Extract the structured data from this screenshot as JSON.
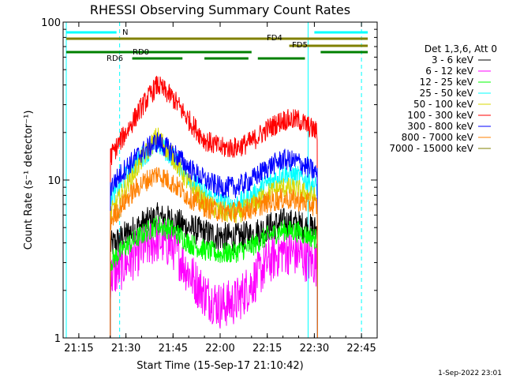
{
  "chart_data": {
    "type": "line",
    "title": "RHESSI Observing Summary Count Rates",
    "xlabel": "Start Time (15-Sep-17 21:10:42)",
    "ylabel": "Count Rate (s⁻¹ detector⁻¹)",
    "yscale": "log",
    "ylim": [
      1,
      100
    ],
    "xlim": [
      "21:10",
      "22:50"
    ],
    "x_ticks": [
      "21:15",
      "21:30",
      "21:45",
      "22:00",
      "22:15",
      "22:30",
      "22:45"
    ],
    "y_ticks": [
      "1",
      "10",
      "100"
    ],
    "grid": false,
    "legend_title": "Det 1,3,6, Att 0",
    "legend_position": "right",
    "data_start": "21:25",
    "data_end": "22:31",
    "series": [
      {
        "name": "3 - 6 keV",
        "color": "#000000",
        "x": [
          "21:25",
          "21:30",
          "21:35",
          "21:40",
          "21:45",
          "21:50",
          "21:55",
          "22:00",
          "22:05",
          "22:10",
          "22:15",
          "22:20",
          "22:25",
          "22:31"
        ],
        "values": [
          3.8,
          4.5,
          5.2,
          5.8,
          5.5,
          5.0,
          4.6,
          4.4,
          4.3,
          4.5,
          5.0,
          5.4,
          5.2,
          4.8
        ]
      },
      {
        "name": "6 - 12 keV",
        "color": "#ff00ff",
        "x": [
          "21:25",
          "21:30",
          "21:35",
          "21:40",
          "21:45",
          "21:50",
          "21:55",
          "22:00",
          "22:05",
          "22:10",
          "22:15",
          "22:20",
          "22:25",
          "22:31"
        ],
        "values": [
          2.4,
          3.0,
          3.6,
          4.2,
          3.8,
          2.6,
          1.9,
          1.6,
          1.7,
          2.2,
          3.0,
          3.6,
          3.4,
          2.9
        ]
      },
      {
        "name": "12 - 25 keV",
        "color": "#00ff00",
        "x": [
          "21:25",
          "21:30",
          "21:35",
          "21:40",
          "21:45",
          "21:50",
          "21:55",
          "22:00",
          "22:05",
          "22:10",
          "22:15",
          "22:20",
          "22:25",
          "22:31"
        ],
        "values": [
          3.0,
          3.8,
          4.5,
          5.2,
          4.8,
          4.0,
          3.6,
          3.4,
          3.5,
          3.8,
          4.4,
          4.8,
          4.7,
          4.2
        ]
      },
      {
        "name": "25 - 50 keV",
        "color": "#00ffff",
        "x": [
          "21:25",
          "21:30",
          "21:35",
          "21:40",
          "21:45",
          "21:50",
          "21:55",
          "22:00",
          "22:05",
          "22:10",
          "22:15",
          "22:20",
          "22:25",
          "22:31"
        ],
        "values": [
          7.5,
          10.5,
          14,
          17,
          14,
          10.5,
          8.2,
          7.2,
          7.0,
          7.8,
          9.5,
          11,
          10.5,
          9.0
        ]
      },
      {
        "name": "50 - 100 keV",
        "color": "#d8d800",
        "x": [
          "21:25",
          "21:30",
          "21:35",
          "21:40",
          "21:45",
          "21:50",
          "21:55",
          "22:00",
          "22:05",
          "22:10",
          "22:15",
          "22:20",
          "22:25",
          "22:31"
        ],
        "values": [
          6.0,
          9.0,
          13.5,
          19,
          14,
          9.5,
          7.2,
          6.3,
          6.1,
          6.8,
          8.2,
          9.0,
          8.6,
          7.6
        ]
      },
      {
        "name": "100 - 300 keV",
        "color": "#ff0000",
        "x": [
          "21:25",
          "21:30",
          "21:35",
          "21:40",
          "21:45",
          "21:50",
          "21:55",
          "22:00",
          "22:05",
          "22:10",
          "22:15",
          "22:20",
          "22:25",
          "22:31"
        ],
        "values": [
          14,
          20,
          29,
          40,
          33,
          24,
          18,
          16,
          16,
          17.5,
          21,
          24,
          24,
          20
        ]
      },
      {
        "name": "300 - 800 keV",
        "color": "#0000ff",
        "x": [
          "21:25",
          "21:30",
          "21:35",
          "21:40",
          "21:45",
          "21:50",
          "21:55",
          "22:00",
          "22:05",
          "22:10",
          "22:15",
          "22:20",
          "22:25",
          "22:31"
        ],
        "values": [
          9.0,
          12,
          15,
          17.5,
          15,
          12,
          10,
          9.0,
          9.0,
          10,
          12,
          13.5,
          13,
          11
        ]
      },
      {
        "name": "800 - 7000 keV",
        "color": "#ff8000",
        "x": [
          "21:25",
          "21:30",
          "21:35",
          "21:40",
          "21:45",
          "21:50",
          "21:55",
          "22:00",
          "22:05",
          "22:10",
          "22:15",
          "22:20",
          "22:25",
          "22:31"
        ],
        "values": [
          5.5,
          7.5,
          9.5,
          11,
          9.5,
          7.8,
          6.8,
          6.3,
          6.3,
          6.6,
          7.2,
          7.6,
          7.4,
          6.8
        ]
      },
      {
        "name": "7000 - 15000 keV",
        "color": "#808000",
        "x": [],
        "values": []
      }
    ],
    "annotations": [
      {
        "text": "N",
        "color": "#00ffff"
      },
      {
        "text": "FD4",
        "color": "#808000"
      },
      {
        "text": "FD5",
        "color": "#808000"
      },
      {
        "text": "RD0",
        "color": "#008000"
      },
      {
        "text": "RD6",
        "color": "#008000"
      }
    ],
    "status_bars": [
      {
        "label": "N",
        "color": "#00ffff",
        "segments": [
          [
            "21:11",
            "21:27"
          ],
          [
            "22:30",
            "22:47"
          ]
        ]
      },
      {
        "label": "FD4",
        "color": "#808000",
        "segments": [
          [
            "21:11",
            "22:47"
          ]
        ]
      },
      {
        "label": "FD5",
        "color": "#808000",
        "segments": [
          [
            "22:22",
            "22:47"
          ]
        ]
      },
      {
        "label": "RD0",
        "color": "#008000",
        "segments": [
          [
            "21:11",
            "22:10"
          ],
          [
            "22:32",
            "22:47"
          ]
        ]
      },
      {
        "label": "RD6",
        "color": "#008000",
        "segments": [
          [
            "21:32",
            "21:48"
          ],
          [
            "21:55",
            "22:09"
          ],
          [
            "22:12",
            "22:27"
          ]
        ]
      }
    ],
    "vertical_markers": [
      {
        "time": "21:11",
        "color": "#00ffff",
        "style": "solid"
      },
      {
        "time": "21:28",
        "color": "#00ffff",
        "style": "dashed"
      },
      {
        "time": "22:28",
        "color": "#00ffff",
        "style": "solid"
      },
      {
        "time": "22:45",
        "color": "#00ffff",
        "style": "dashed"
      }
    ]
  },
  "footer": {
    "timestamp": "1-Sep-2022 23:01"
  }
}
